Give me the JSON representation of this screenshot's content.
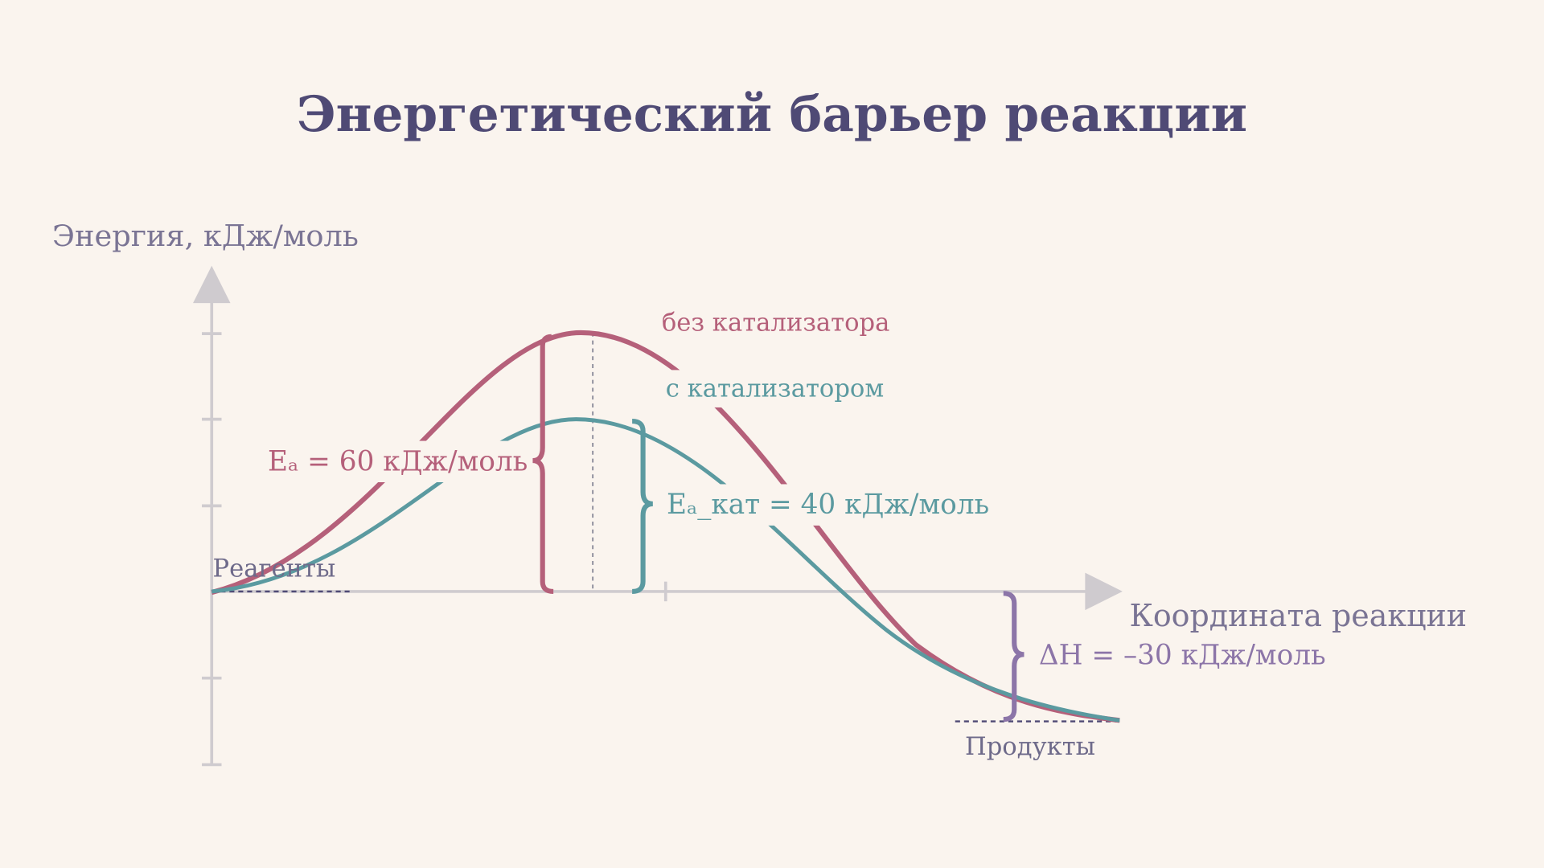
{
  "title": "Энергетический барьер реакции",
  "axes": {
    "y_label": "Энергия, кДж/моль",
    "x_label": "Координата реакции"
  },
  "curves": {
    "uncatalyzed": "без катализатора",
    "catalyzed": "с катализатором"
  },
  "annotations": {
    "ea": "Eₐ = 60 кДж/моль",
    "ea_cat": "Eₐ_кат = 40 кДж/моль",
    "dh": "ΔH = –30 кДж/моль"
  },
  "levels": {
    "reagents": "Реагенты",
    "products": "Продукты"
  }
}
